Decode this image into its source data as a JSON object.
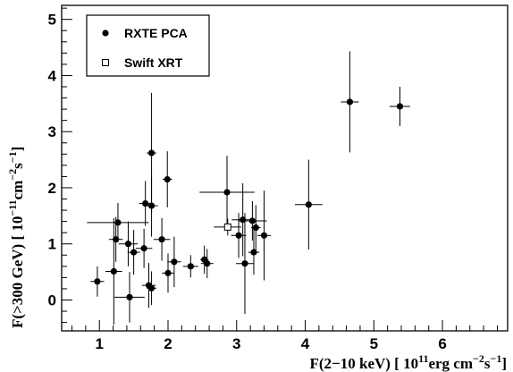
{
  "chart_data": {
    "type": "scatter",
    "xlabel": {
      "main": "F(2−10 keV) [ 10",
      "exp": "11",
      "unit": "erg cm",
      "unit_exp": "−2",
      "unit2": "s",
      "unit2_exp": "−1",
      "tail": "]"
    },
    "ylabel": {
      "main": "F(>300 GeV) [ 10",
      "exp": "−11",
      "unit": "cm",
      "unit_exp": "−2",
      "unit2": "s",
      "unit2_exp": "−1",
      "tail": "]"
    },
    "xlim": [
      0.45,
      6.95
    ],
    "ylim": [
      -0.55,
      5.25
    ],
    "x_ticks": [
      "1",
      "2",
      "3",
      "4",
      "5",
      "6"
    ],
    "y_ticks": [
      "0",
      "1",
      "2",
      "3",
      "4",
      "5"
    ],
    "grid": false,
    "legend_position": "top-left",
    "series": [
      {
        "name": "RXTE PCA",
        "marker": "filled-circle",
        "color": "#000000",
        "points": [
          {
            "x": 0.97,
            "y": 0.33,
            "xerr": 0.1,
            "yerr": 0.27
          },
          {
            "x": 1.21,
            "y": 0.51,
            "xerr": 0.12,
            "yerr": 0.95
          },
          {
            "x": 1.24,
            "y": 1.08,
            "xerr": 0.1,
            "yerr": 0.4
          },
          {
            "x": 1.27,
            "y": 1.38,
            "xerr": 0.45,
            "yerr": 0.35
          },
          {
            "x": 1.42,
            "y": 1.0,
            "xerr": 0.14,
            "yerr": 0.4
          },
          {
            "x": 1.44,
            "y": 0.05,
            "xerr": 0.22,
            "yerr": 0.45
          },
          {
            "x": 1.5,
            "y": 0.85,
            "xerr": 0.09,
            "yerr": 0.4
          },
          {
            "x": 1.67,
            "y": 1.72,
            "xerr": 0.09,
            "yerr": 0.4
          },
          {
            "x": 1.65,
            "y": 0.92,
            "xerr": 0.12,
            "yerr": 0.35
          },
          {
            "x": 1.72,
            "y": 0.26,
            "xerr": 0.1,
            "yerr": 0.4
          },
          {
            "x": 1.76,
            "y": 2.62,
            "xerr": 0.07,
            "yerr": 1.07
          },
          {
            "x": 1.76,
            "y": 1.68,
            "xerr": 0.09,
            "yerr": 0.55
          },
          {
            "x": 1.76,
            "y": 0.21,
            "xerr": 0.07,
            "yerr": 0.3
          },
          {
            "x": 1.91,
            "y": 1.08,
            "xerr": 0.12,
            "yerr": 0.38
          },
          {
            "x": 1.99,
            "y": 2.15,
            "xerr": 0.07,
            "yerr": 0.5
          },
          {
            "x": 2.0,
            "y": 0.48,
            "xerr": 0.09,
            "yerr": 0.35
          },
          {
            "x": 2.09,
            "y": 0.68,
            "xerr": 0.1,
            "yerr": 0.45
          },
          {
            "x": 2.33,
            "y": 0.6,
            "xerr": 0.11,
            "yerr": 0.2
          },
          {
            "x": 2.53,
            "y": 0.72,
            "xerr": 0.06,
            "yerr": 0.25
          },
          {
            "x": 2.57,
            "y": 0.65,
            "xerr": 0.09,
            "yerr": 0.26
          },
          {
            "x": 2.86,
            "y": 1.92,
            "xerr": 0.4,
            "yerr": 0.65
          },
          {
            "x": 3.03,
            "y": 1.15,
            "xerr": 0.11,
            "yerr": 0.4
          },
          {
            "x": 3.09,
            "y": 1.43,
            "xerr": 0.16,
            "yerr": 0.65
          },
          {
            "x": 3.12,
            "y": 0.65,
            "xerr": 0.13,
            "yerr": 0.9
          },
          {
            "x": 3.23,
            "y": 1.41,
            "xerr": 0.21,
            "yerr": 0.35
          },
          {
            "x": 3.25,
            "y": 0.85,
            "xerr": 0.08,
            "yerr": 0.4
          },
          {
            "x": 3.28,
            "y": 1.29,
            "xerr": 0.07,
            "yerr": 0.4
          },
          {
            "x": 3.4,
            "y": 1.15,
            "xerr": 0.1,
            "yerr": 0.8
          },
          {
            "x": 4.05,
            "y": 1.7,
            "xerr": 0.2,
            "yerr": 0.8
          },
          {
            "x": 4.65,
            "y": 3.53,
            "xerr": 0.13,
            "yerr": 0.9
          },
          {
            "x": 5.38,
            "y": 3.45,
            "xerr": 0.15,
            "yerr": 0.35
          }
        ]
      },
      {
        "name": "Swift XRT",
        "marker": "open-square",
        "color": "#000000",
        "points": [
          {
            "x": 2.87,
            "y": 1.3,
            "xerr": 0.2,
            "yerr": 0.15
          }
        ]
      }
    ]
  }
}
